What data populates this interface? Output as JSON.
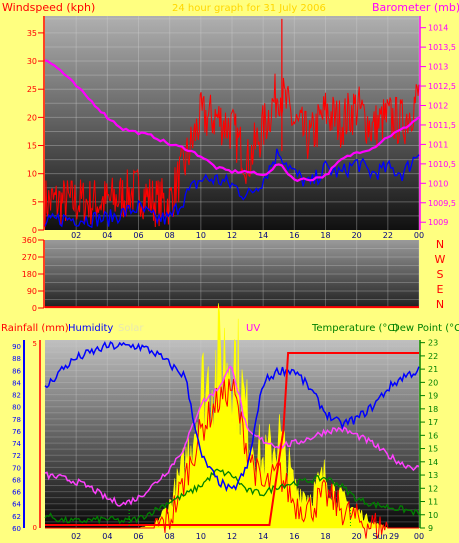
{
  "header": {
    "left_title": "Windspeed (kph)",
    "center_title": "24 hour graph for 31 July 2006",
    "right_title": "Barometer (mb)"
  },
  "lower_header": {
    "rainfall": "Rainfall (mm)",
    "humidity": "Humidity",
    "solar": "Solar",
    "uv": "UV",
    "temperature": "Temperature (°C)",
    "dewpoint": "Dew Point (°C"
  },
  "colors": {
    "background": "#ffff80",
    "wind": "#ff0000",
    "gust": "#0000ff",
    "barometer": "#ff00ff",
    "humidity": "#0000ff",
    "solar": "#ffff00",
    "uv": "#ff0000",
    "temperature": "#ff40ff",
    "dewpoint": "#008000",
    "rain": "#ff0000",
    "left_axis_text": "#ff0000",
    "right_axis_text": "#ff00ff",
    "temperature_axis_text": "#008000"
  },
  "x_ticks": [
    "02",
    "04",
    "06",
    "08",
    "10",
    "12",
    "14",
    "16",
    "18",
    "20",
    "22",
    "00"
  ],
  "lower_x_ticks": [
    "02",
    "04",
    "06",
    "08",
    "10",
    "12",
    "14",
    "16",
    "18",
    "20",
    "Sun",
    "29",
    "00"
  ],
  "chart_data": [
    {
      "type": "line",
      "panel": "wind-barometer",
      "ylabel": "Windspeed (kph)",
      "y2label": "Barometer (mb)",
      "ylim": [
        0,
        38
      ],
      "yticks": [
        "0",
        "5",
        "10",
        "15",
        "20",
        "25",
        "30",
        "35"
      ],
      "y2lim": [
        1008.8,
        1014.3
      ],
      "y2ticks": [
        "1009",
        "1009,5",
        "1010",
        "1010,5",
        "1011",
        "1011,5",
        "1012",
        "1012,5",
        "1013",
        "1013,5",
        "1014"
      ],
      "x": [
        0,
        1,
        2,
        3,
        4,
        5,
        6,
        7,
        8,
        9,
        10,
        11,
        12,
        13,
        14,
        15,
        16,
        17,
        18,
        19,
        20,
        21,
        22,
        23,
        24
      ],
      "series": [
        {
          "values": [
            5,
            5,
            5,
            5,
            5,
            6,
            7,
            5,
            5,
            12,
            20,
            20,
            18,
            12,
            18,
            25,
            19,
            16,
            21,
            19,
            22,
            18,
            20,
            19,
            24
          ]
        },
        {
          "values": [
            1,
            2,
            2,
            2,
            2,
            3,
            4,
            2,
            2,
            6,
            9,
            9,
            8,
            6,
            9,
            14,
            10,
            8,
            11,
            10,
            12,
            10,
            11,
            10,
            14
          ]
        },
        {
          "values": [
            1013.2,
            1012.9,
            1012.5,
            1012.1,
            1011.7,
            1011.4,
            1011.3,
            1011.2,
            1011.0,
            1010.9,
            1010.7,
            1010.4,
            1010.3,
            1010.3,
            1010.2,
            1010.5,
            1010.1,
            1010.1,
            1010.2,
            1010.6,
            1010.8,
            1010.9,
            1011.2,
            1011.4,
            1011.7
          ]
        }
      ]
    },
    {
      "type": "line",
      "panel": "wind-direction",
      "yticks": [
        "0",
        "90",
        "180",
        "270",
        "360"
      ],
      "y2ticks": [
        "N",
        "E",
        "S",
        "W",
        "N"
      ],
      "ylim": [
        0,
        360
      ],
      "series": [
        {
          "values": [
            5,
            5,
            5,
            5,
            5,
            5,
            5,
            5,
            5,
            5,
            5,
            5,
            5,
            5,
            5,
            5,
            5,
            5,
            5,
            5,
            5,
            5,
            5,
            5,
            5
          ]
        }
      ]
    },
    {
      "type": "line",
      "panel": "temperature-humidity",
      "ylabel": "Humidity",
      "ylim": [
        60,
        91
      ],
      "yticks": [
        "60",
        "62",
        "64",
        "66",
        "68",
        "70",
        "72",
        "74",
        "76",
        "78",
        "80",
        "82",
        "84",
        "86",
        "88",
        "90"
      ],
      "y2lim": [
        9,
        23.2
      ],
      "y2ticks": [
        "9",
        "10",
        "11",
        "12",
        "13",
        "14",
        "15",
        "16",
        "17",
        "18",
        "19",
        "20",
        "21",
        "22",
        "23"
      ],
      "rain_axis_ticks": [
        "0",
        "5"
      ],
      "x": [
        0,
        1,
        2,
        3,
        4,
        5,
        6,
        7,
        8,
        9,
        10,
        11,
        12,
        13,
        14,
        15,
        16,
        17,
        18,
        19,
        20,
        21,
        22,
        23,
        24
      ],
      "series": [
        {
          "values": [
            83,
            86,
            88,
            89,
            90,
            90,
            90,
            89,
            87,
            85,
            72,
            68,
            66,
            70,
            84,
            86,
            86,
            83,
            79,
            77,
            78,
            80,
            83,
            85,
            86
          ]
        },
        {
          "values": [
            10.0,
            9.6,
            9.5,
            9.6,
            9.7,
            9.5,
            9.7,
            10.3,
            11.0,
            11.5,
            12.2,
            13.3,
            13.0,
            11.8,
            11.6,
            12.2,
            12.4,
            12.6,
            12.8,
            12.2,
            11.2,
            10.8,
            10.6,
            10.4,
            10.1
          ]
        },
        {
          "values": [
            13.0,
            12.8,
            12.5,
            12.0,
            11.2,
            10.8,
            11.3,
            12.3,
            13.5,
            15.2,
            18.4,
            19.4,
            21.3,
            16.2,
            15.6,
            15.2,
            15.4,
            15.8,
            16.3,
            16.5,
            16.0,
            15.4,
            14.5,
            13.8,
            13.5
          ]
        },
        {
          "values": [
            0,
            0,
            0,
            0,
            0,
            0,
            0,
            0,
            0,
            0,
            0,
            0,
            0,
            0,
            0,
            4.7,
            4.7,
            4.7,
            4.7,
            4.7,
            4.7,
            4.7,
            4.7,
            4.7,
            4.7
          ]
        },
        {
          "values": [
            0,
            0,
            0,
            0,
            0,
            0,
            0,
            0.1,
            0.8,
            2.2,
            4.6,
            5.4,
            6.3,
            3.6,
            2.2,
            3.2,
            1.4,
            1.1,
            1.8,
            1.0,
            0.6,
            0.2,
            0,
            0,
            0
          ]
        },
        {
          "values": [
            0,
            0,
            0,
            0,
            0,
            0,
            0,
            0,
            0.3,
            1.8,
            3.5,
            4.5,
            5.1,
            2.8,
            1.4,
            2.0,
            0.9,
            0.7,
            1.2,
            0.7,
            0.3,
            0.1,
            0,
            0,
            0
          ]
        }
      ]
    }
  ]
}
